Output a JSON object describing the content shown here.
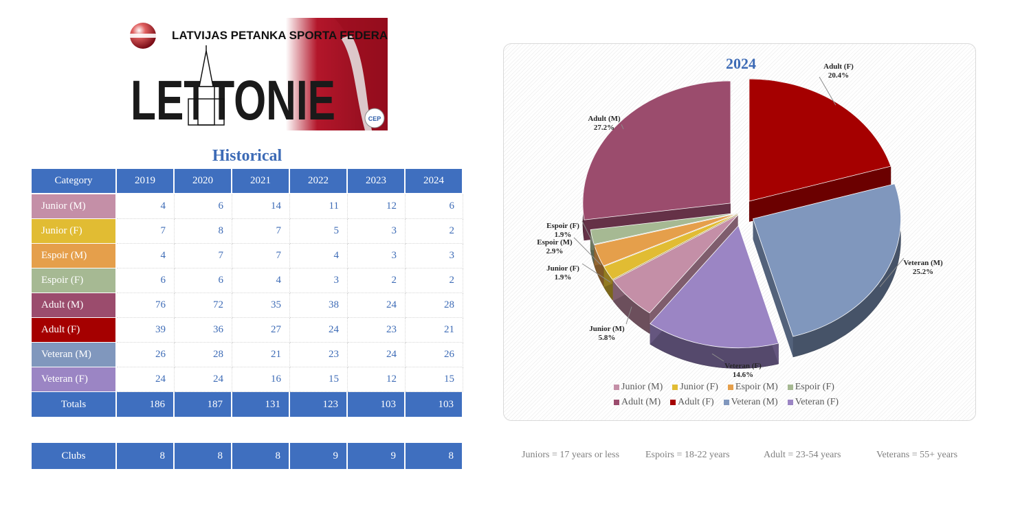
{
  "logo": {
    "federation_name": "LATVIJAS PETANKA SPORTA FEDERACIJA",
    "country_word": "LETTONIE",
    "badge_text": "CEP"
  },
  "historical": {
    "title": "Historical",
    "header": "Category",
    "years": [
      "2019",
      "2020",
      "2021",
      "2022",
      "2023",
      "2024"
    ],
    "rows": [
      {
        "label": "Junior (M)",
        "color": "#c48fa7",
        "values": [
          "4",
          "6",
          "14",
          "11",
          "12",
          "6"
        ]
      },
      {
        "label": "Junior (F)",
        "color": "#e1bc33",
        "values": [
          "7",
          "8",
          "7",
          "5",
          "3",
          "2"
        ]
      },
      {
        "label": "Espoir (M)",
        "color": "#e59f4b",
        "values": [
          "4",
          "7",
          "7",
          "4",
          "3",
          "3"
        ]
      },
      {
        "label": "Espoir (F)",
        "color": "#a6b993",
        "values": [
          "6",
          "6",
          "4",
          "3",
          "2",
          "2"
        ]
      },
      {
        "label": "Adult (M)",
        "color": "#9b4c6d",
        "values": [
          "76",
          "72",
          "35",
          "38",
          "24",
          "28"
        ]
      },
      {
        "label": "Adult (F)",
        "color": "#a50000",
        "values": [
          "39",
          "36",
          "27",
          "24",
          "23",
          "21"
        ]
      },
      {
        "label": "Veteran (M)",
        "color": "#8097bd",
        "values": [
          "26",
          "28",
          "21",
          "23",
          "24",
          "26"
        ]
      },
      {
        "label": "Veteran (F)",
        "color": "#9b85c4",
        "values": [
          "24",
          "24",
          "16",
          "15",
          "12",
          "15"
        ]
      }
    ],
    "totals": {
      "label": "Totals",
      "values": [
        "186",
        "187",
        "131",
        "123",
        "103",
        "103"
      ]
    },
    "clubs": {
      "label": "Clubs",
      "values": [
        "8",
        "8",
        "8",
        "9",
        "9",
        "8"
      ]
    }
  },
  "chart_data": {
    "type": "pie",
    "title": "2024",
    "categories": [
      "Junior (M)",
      "Junior (F)",
      "Espoir (M)",
      "Espoir (F)",
      "Adult (M)",
      "Adult (F)",
      "Veteran (M)",
      "Veteran (F)"
    ],
    "values": [
      6,
      2,
      3,
      2,
      28,
      21,
      26,
      15
    ],
    "percent_labels": [
      "5.8%",
      "1.9%",
      "2.9%",
      "1.9%",
      "27.2%",
      "20.4%",
      "25.2%",
      "14.6%"
    ],
    "colors": [
      "#c48fa7",
      "#e1bc33",
      "#e59f4b",
      "#a6b993",
      "#9b4c6d",
      "#a50000",
      "#8097bd",
      "#9b85c4"
    ],
    "legend_position": "bottom",
    "style": "3d-exploded"
  },
  "footnotes": [
    "Juniors = 17 years or less",
    "Espoirs = 18-22 years",
    "Adult = 23-54 years",
    "Veterans = 55+ years"
  ]
}
